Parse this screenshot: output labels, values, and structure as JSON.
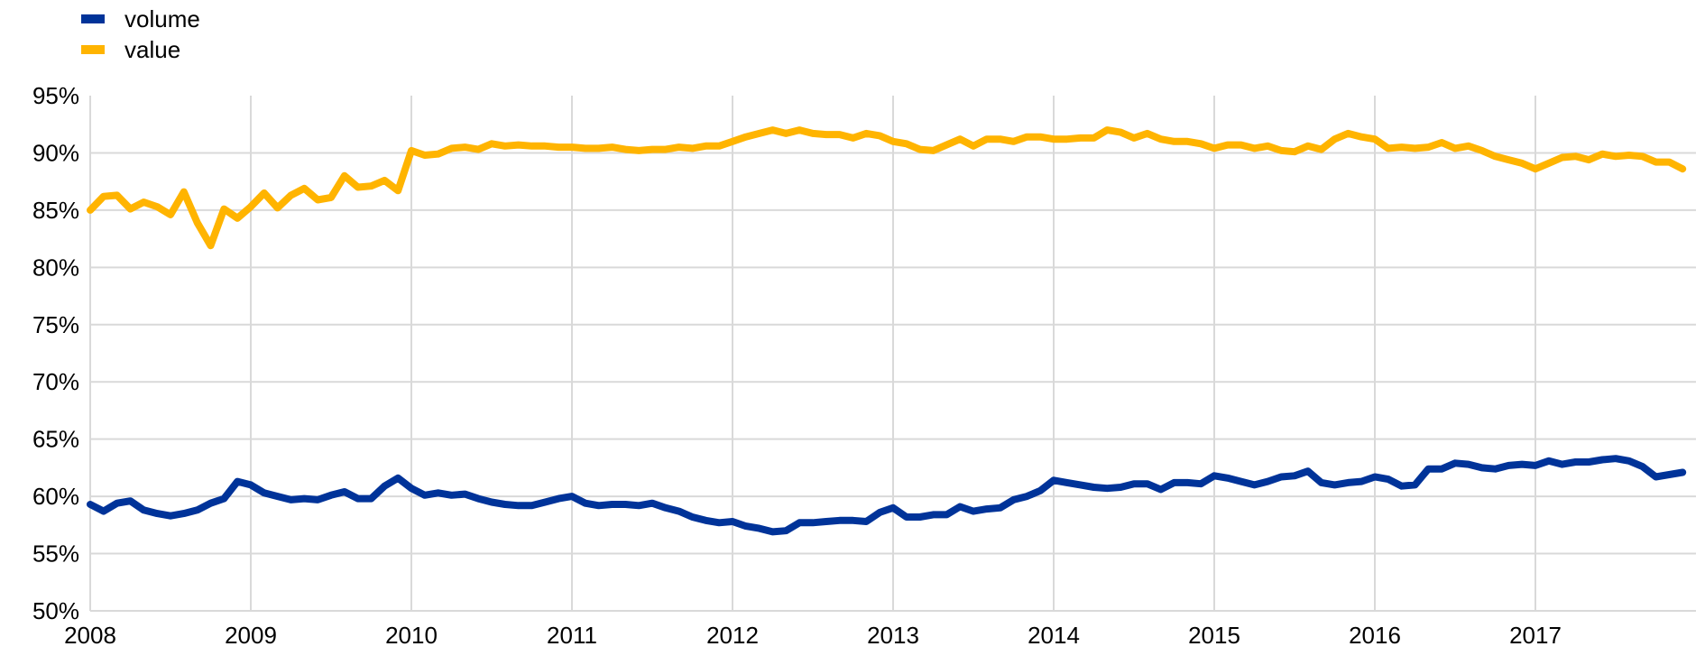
{
  "chart_data": {
    "type": "line",
    "title": "",
    "xlabel": "",
    "ylabel": "",
    "x_ticks": [
      "2008",
      "2009",
      "2010",
      "2011",
      "2012",
      "2013",
      "2014",
      "2015",
      "2016",
      "2017"
    ],
    "y_ticks": [
      "95%",
      "90%",
      "85%",
      "80%",
      "75%",
      "70%",
      "65%",
      "60%",
      "55%",
      "50%"
    ],
    "xlim": [
      2008,
      2018
    ],
    "ylim": [
      50,
      95
    ],
    "grid": true,
    "legend": "top-left",
    "series": [
      {
        "name": "volume",
        "color": "#003399",
        "x": [
          2008.0,
          2008.083,
          2008.167,
          2008.25,
          2008.333,
          2008.417,
          2008.5,
          2008.583,
          2008.667,
          2008.75,
          2008.833,
          2008.917,
          2009.0,
          2009.083,
          2009.167,
          2009.25,
          2009.333,
          2009.417,
          2009.5,
          2009.583,
          2009.667,
          2009.75,
          2009.833,
          2009.917,
          2010.0,
          2010.083,
          2010.167,
          2010.25,
          2010.333,
          2010.417,
          2010.5,
          2010.583,
          2010.667,
          2010.75,
          2010.833,
          2010.917,
          2011.0,
          2011.083,
          2011.167,
          2011.25,
          2011.333,
          2011.417,
          2011.5,
          2011.583,
          2011.667,
          2011.75,
          2011.833,
          2011.917,
          2012.0,
          2012.083,
          2012.167,
          2012.25,
          2012.333,
          2012.417,
          2012.5,
          2012.583,
          2012.667,
          2012.75,
          2012.833,
          2012.917,
          2013.0,
          2013.083,
          2013.167,
          2013.25,
          2013.333,
          2013.417,
          2013.5,
          2013.583,
          2013.667,
          2013.75,
          2013.833,
          2013.917,
          2014.0,
          2014.083,
          2014.167,
          2014.25,
          2014.333,
          2014.417,
          2014.5,
          2014.583,
          2014.667,
          2014.75,
          2014.833,
          2014.917,
          2015.0,
          2015.083,
          2015.167,
          2015.25,
          2015.333,
          2015.417,
          2015.5,
          2015.583,
          2015.667,
          2015.75,
          2015.833,
          2015.917,
          2016.0,
          2016.083,
          2016.167,
          2016.25,
          2016.333,
          2016.417,
          2016.5,
          2016.583,
          2016.667,
          2016.75,
          2016.833,
          2016.917,
          2017.0,
          2017.083,
          2017.167,
          2017.25,
          2017.333,
          2017.417,
          2017.5,
          2017.583,
          2017.667,
          2017.75,
          2017.833,
          2017.917
        ],
        "values": [
          59.3,
          58.7,
          59.4,
          59.6,
          58.8,
          58.5,
          58.3,
          58.5,
          58.8,
          59.4,
          59.8,
          61.3,
          61.0,
          60.3,
          60.0,
          59.7,
          59.8,
          59.7,
          60.1,
          60.4,
          59.8,
          59.8,
          60.9,
          61.6,
          60.7,
          60.1,
          60.3,
          60.1,
          60.2,
          59.8,
          59.5,
          59.3,
          59.2,
          59.2,
          59.5,
          59.8,
          60.0,
          59.4,
          59.2,
          59.3,
          59.3,
          59.2,
          59.4,
          59.0,
          58.7,
          58.2,
          57.9,
          57.7,
          57.8,
          57.4,
          57.2,
          56.9,
          57.0,
          57.7,
          57.7,
          57.8,
          57.9,
          57.9,
          57.8,
          58.6,
          59.0,
          58.2,
          58.2,
          58.4,
          58.4,
          59.1,
          58.7,
          58.9,
          59.0,
          59.7,
          60.0,
          60.5,
          61.4,
          61.2,
          61.0,
          60.8,
          60.7,
          60.8,
          61.1,
          61.1,
          60.6,
          61.2,
          61.2,
          61.1,
          61.8,
          61.6,
          61.3,
          61.0,
          61.3,
          61.7,
          61.8,
          62.2,
          61.2,
          61.0,
          61.2,
          61.3,
          61.7,
          61.5,
          60.9,
          61.0,
          62.4,
          62.4,
          62.9,
          62.8,
          62.5,
          62.4,
          62.7,
          62.8,
          62.7,
          63.1,
          62.8,
          63.0,
          63.0,
          63.2,
          63.3,
          63.1,
          62.6,
          61.7,
          61.9,
          62.1
        ]
      },
      {
        "name": "value",
        "color": "#ffb400",
        "x": [
          2008.0,
          2008.083,
          2008.167,
          2008.25,
          2008.333,
          2008.417,
          2008.5,
          2008.583,
          2008.667,
          2008.75,
          2008.833,
          2008.917,
          2009.0,
          2009.083,
          2009.167,
          2009.25,
          2009.333,
          2009.417,
          2009.5,
          2009.583,
          2009.667,
          2009.75,
          2009.833,
          2009.917,
          2010.0,
          2010.083,
          2010.167,
          2010.25,
          2010.333,
          2010.417,
          2010.5,
          2010.583,
          2010.667,
          2010.75,
          2010.833,
          2010.917,
          2011.0,
          2011.083,
          2011.167,
          2011.25,
          2011.333,
          2011.417,
          2011.5,
          2011.583,
          2011.667,
          2011.75,
          2011.833,
          2011.917,
          2012.0,
          2012.083,
          2012.167,
          2012.25,
          2012.333,
          2012.417,
          2012.5,
          2012.583,
          2012.667,
          2012.75,
          2012.833,
          2012.917,
          2013.0,
          2013.083,
          2013.167,
          2013.25,
          2013.333,
          2013.417,
          2013.5,
          2013.583,
          2013.667,
          2013.75,
          2013.833,
          2013.917,
          2014.0,
          2014.083,
          2014.167,
          2014.25,
          2014.333,
          2014.417,
          2014.5,
          2014.583,
          2014.667,
          2014.75,
          2014.833,
          2014.917,
          2015.0,
          2015.083,
          2015.167,
          2015.25,
          2015.333,
          2015.417,
          2015.5,
          2015.583,
          2015.667,
          2015.75,
          2015.833,
          2015.917,
          2016.0,
          2016.083,
          2016.167,
          2016.25,
          2016.333,
          2016.417,
          2016.5,
          2016.583,
          2016.667,
          2016.75,
          2016.833,
          2016.917,
          2017.0,
          2017.083,
          2017.167,
          2017.25,
          2017.333,
          2017.417,
          2017.5,
          2017.583,
          2017.667,
          2017.75,
          2017.833,
          2017.917
        ],
        "values": [
          85.0,
          86.2,
          86.3,
          85.1,
          85.7,
          85.3,
          84.6,
          86.6,
          83.9,
          81.9,
          85.1,
          84.3,
          85.3,
          86.5,
          85.2,
          86.3,
          86.9,
          85.9,
          86.1,
          88.0,
          87.0,
          87.1,
          87.6,
          86.7,
          90.2,
          89.8,
          89.9,
          90.4,
          90.5,
          90.3,
          90.8,
          90.6,
          90.7,
          90.6,
          90.6,
          90.5,
          90.5,
          90.4,
          90.4,
          90.5,
          90.3,
          90.2,
          90.3,
          90.3,
          90.5,
          90.4,
          90.6,
          90.6,
          91.0,
          91.4,
          91.7,
          92.0,
          91.7,
          92.0,
          91.7,
          91.6,
          91.6,
          91.3,
          91.7,
          91.5,
          91.0,
          90.8,
          90.3,
          90.2,
          90.7,
          91.2,
          90.6,
          91.2,
          91.2,
          91.0,
          91.4,
          91.4,
          91.2,
          91.2,
          91.3,
          91.3,
          92.0,
          91.8,
          91.3,
          91.7,
          91.2,
          91.0,
          91.0,
          90.8,
          90.4,
          90.7,
          90.7,
          90.4,
          90.6,
          90.2,
          90.1,
          90.6,
          90.3,
          91.2,
          91.7,
          91.4,
          91.2,
          90.4,
          90.5,
          90.4,
          90.5,
          90.9,
          90.4,
          90.6,
          90.2,
          89.7,
          89.4,
          89.1,
          88.6,
          89.1,
          89.6,
          89.7,
          89.4,
          89.9,
          89.7,
          89.8,
          89.7,
          89.2,
          89.2,
          88.6
        ]
      }
    ]
  }
}
